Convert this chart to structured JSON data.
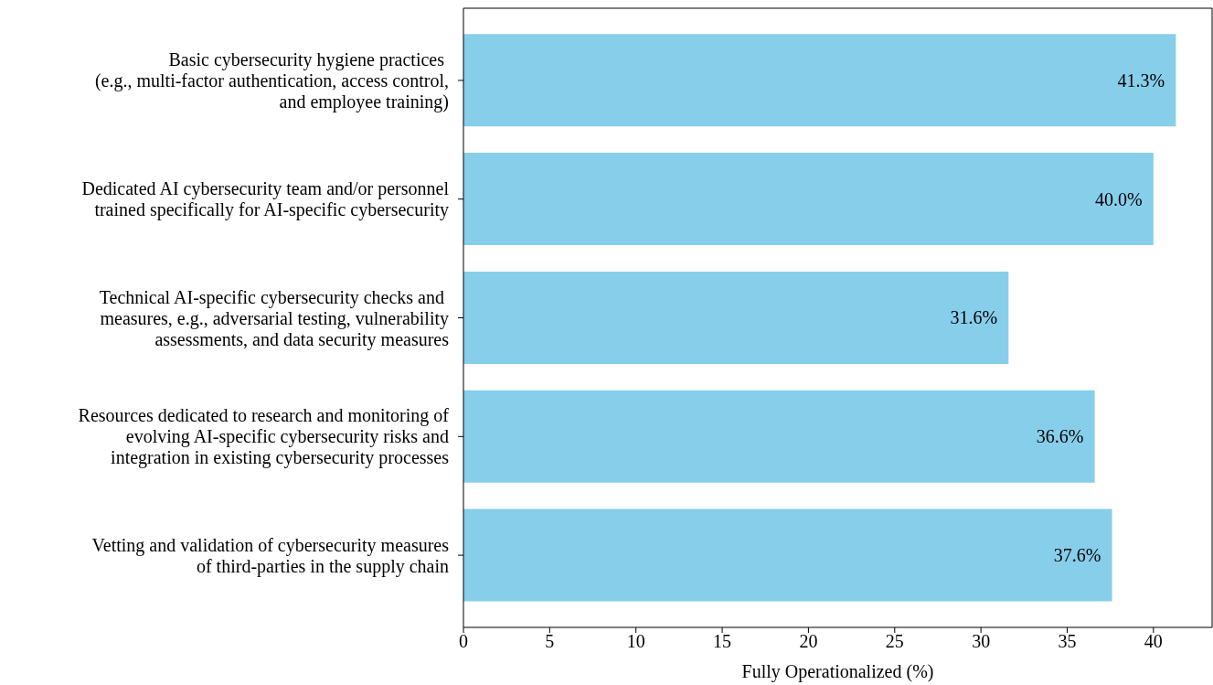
{
  "chart_data": {
    "type": "bar",
    "orientation": "horizontal",
    "xlabel": "Fully Operationalized (%)",
    "categories": [
      "Basic cybersecurity hygiene practices \n(e.g., multi-factor authentication, access control,\nand employee training)",
      "Dedicated AI cybersecurity team and/or personnel\ntrained specifically for AI-specific cybersecurity",
      "Technical AI-specific cybersecurity checks and \nmeasures, e.g., adversarial testing, vulnerability\nassessments, and data security measures",
      "Resources dedicated to research and monitoring of\nevolving AI-specific cybersecurity risks and\nintegration in existing cybersecurity processes",
      "Vetting and validation of cybersecurity measures\nof third-parties in the supply chain"
    ],
    "values": [
      41.3,
      40.0,
      31.6,
      36.6,
      37.6
    ],
    "value_labels": [
      "41.3%",
      "40.0%",
      "31.6%",
      "36.6%",
      "37.6%"
    ],
    "color": "#87ceeb",
    "xlim": [
      0,
      43.4
    ],
    "xticks": [
      0,
      5,
      10,
      15,
      20,
      25,
      30,
      35,
      40
    ],
    "grid": false,
    "legend": false
  }
}
